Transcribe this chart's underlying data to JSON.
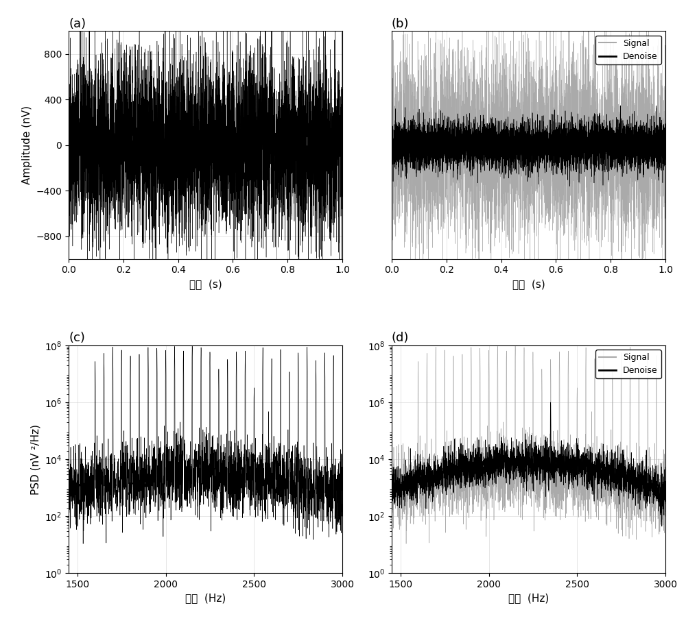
{
  "fig_width": 10.0,
  "fig_height": 9.09,
  "dpi": 100,
  "bg_color": "#ffffff",
  "panel_labels": [
    "(a)",
    "(b)",
    "(c)",
    "(d)"
  ],
  "subplot_a": {
    "xlabel": "时间  (s)",
    "ylabel": "Amplitude (nV)",
    "xlim": [
      0,
      1
    ],
    "ylim": [
      -1000,
      1000
    ],
    "xticks": [
      0,
      0.2,
      0.4,
      0.6,
      0.8,
      1
    ],
    "yticks": [
      -800,
      -400,
      0,
      400,
      800
    ],
    "signal_color": "#000000",
    "noise_amplitude": 700,
    "seed": 42
  },
  "subplot_b": {
    "xlabel": "时间  (s)",
    "ylabel": "",
    "xlim": [
      0,
      1
    ],
    "ylim": [
      -1000,
      1000
    ],
    "xticks": [
      0,
      0.2,
      0.4,
      0.6,
      0.8,
      1
    ],
    "yticks": [],
    "signal_color": "#aaaaaa",
    "denoise_color": "#000000",
    "signal_amplitude": 700,
    "denoise_amplitude": 150,
    "seed": 42,
    "legend_labels": [
      "Signal",
      "Denoise"
    ]
  },
  "subplot_c": {
    "xlabel": "频率  (Hz)",
    "ylabel": "PSD (nV ²/Hz)",
    "xlim": [
      1450,
      3000
    ],
    "ylim_log": [
      1.0,
      100000000.0
    ],
    "xticks": [
      1500,
      2000,
      2500,
      3000
    ],
    "yticks_log": [
      1.0,
      100.0,
      10000.0,
      1000000.0,
      100000000.0
    ],
    "signal_color": "#000000",
    "seed": 10
  },
  "subplot_d": {
    "xlabel": "频率  (Hz)",
    "ylabel": "",
    "xlim": [
      1450,
      3000
    ],
    "ylim_log": [
      1.0,
      100000000.0
    ],
    "xticks": [
      1500,
      2000,
      2500,
      3000
    ],
    "yticks_log": [
      1.0,
      100.0,
      10000.0,
      1000000.0,
      100000000.0
    ],
    "signal_color": "#aaaaaa",
    "denoise_color": "#000000",
    "seed": 10,
    "legend_labels": [
      "Signal",
      "Denoise"
    ]
  },
  "grid_color": "#cccccc",
  "grid_alpha": 0.7,
  "label_fontsize": 11,
  "tick_fontsize": 10,
  "title_fontsize": 13,
  "hspace": 0.38,
  "wspace": 0.18
}
